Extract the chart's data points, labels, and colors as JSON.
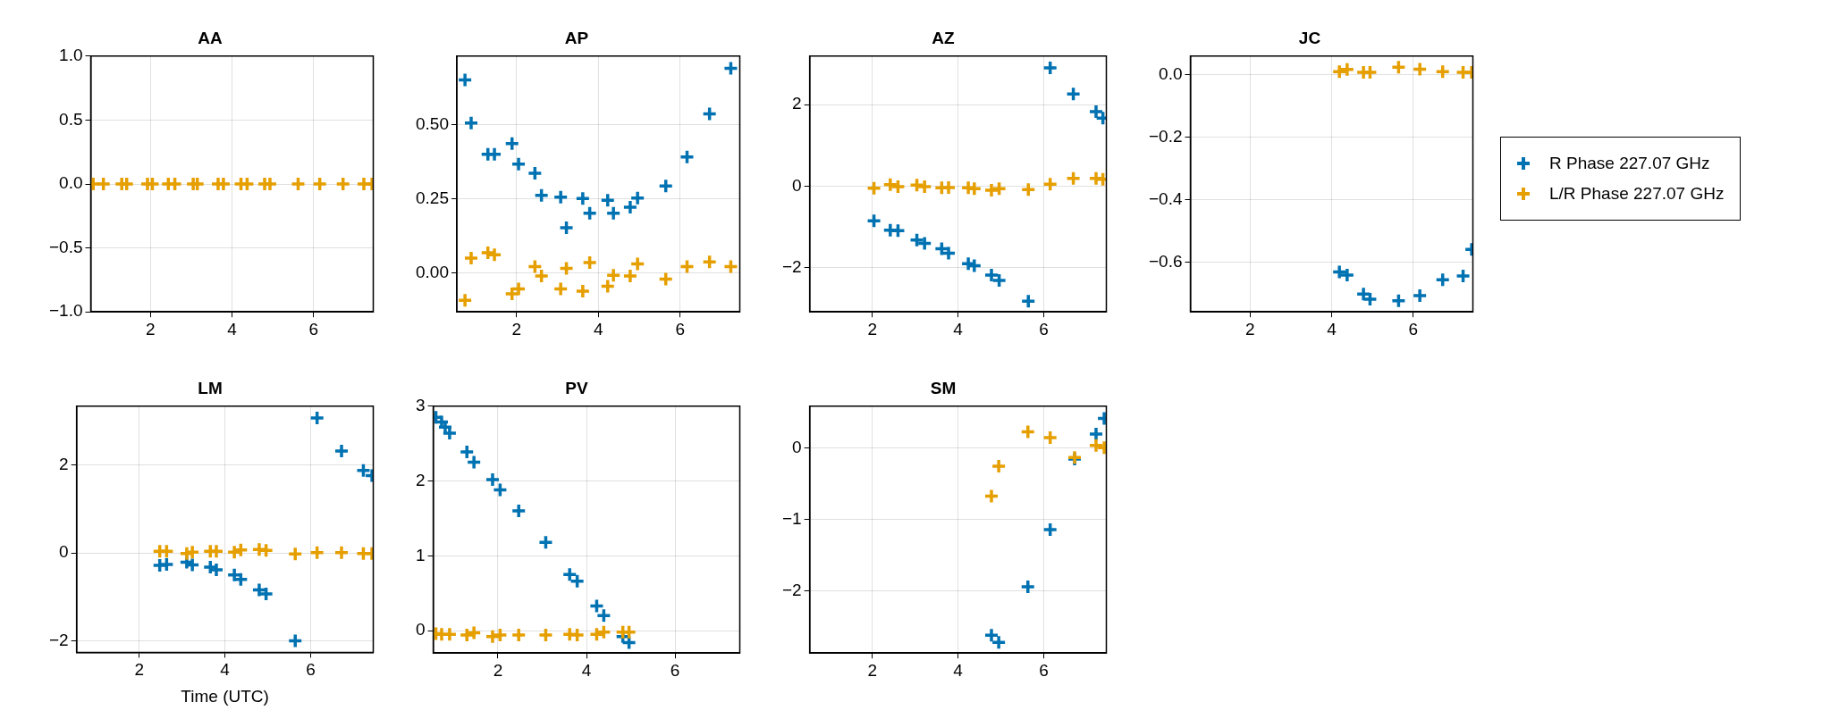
{
  "chart_data": [
    {
      "type": "scatter",
      "title": "AA",
      "xlim": [
        0.54,
        7.46
      ],
      "xticks": [
        2,
        4,
        6
      ],
      "ylim": [
        -1,
        1
      ],
      "yticks": [
        {
          "value": -1,
          "label": "−1.0"
        },
        {
          "value": -0.5,
          "label": "−0.5"
        },
        {
          "value": 0,
          "label": "0.0"
        },
        {
          "value": 0.5,
          "label": "0.5"
        },
        {
          "value": 1,
          "label": "1.0"
        }
      ],
      "grid": true,
      "marker": "cross",
      "series": [
        {
          "color": "#e69f00",
          "x": [
            0.6,
            0.85,
            1.3,
            1.42,
            1.93,
            2.05,
            2.44,
            2.6,
            3.05,
            3.15,
            3.66,
            3.79,
            4.22,
            4.37,
            4.8,
            4.93,
            5.62,
            6.15,
            6.72,
            7.23,
            7.43
          ],
          "values": [
            0,
            0,
            0,
            0,
            0,
            0,
            0,
            0,
            0,
            0,
            0,
            0,
            0,
            0,
            0,
            0,
            0,
            0,
            0,
            0,
            0
          ]
        }
      ]
    },
    {
      "type": "scatter",
      "title": "AP",
      "xlim": [
        0.54,
        7.46
      ],
      "xticks": [
        2,
        4,
        6
      ],
      "ylim": [
        -0.13,
        0.73
      ],
      "yticks": [
        {
          "value": 0,
          "label": "0.00"
        },
        {
          "value": 0.25,
          "label": "0.25"
        },
        {
          "value": 0.5,
          "label": "0.50"
        }
      ],
      "grid": true,
      "marker": "cross",
      "series": [
        {
          "color": "#0072b2",
          "x": [
            0.74,
            0.89,
            1.3,
            1.46,
            1.89,
            2.05,
            2.45,
            2.61,
            3.08,
            3.22,
            3.62,
            3.79,
            4.23,
            4.37,
            4.78,
            4.96,
            5.65,
            6.17,
            6.72,
            7.24
          ],
          "values": [
            0.65,
            0.505,
            0.4,
            0.4,
            0.436,
            0.367,
            0.336,
            0.262,
            0.256,
            0.153,
            0.251,
            0.202,
            0.245,
            0.202,
            0.222,
            0.253,
            0.293,
            0.391,
            0.536,
            0.689
          ]
        },
        {
          "color": "#e69f00",
          "x": [
            0.74,
            0.89,
            1.3,
            1.46,
            1.89,
            2.05,
            2.45,
            2.61,
            3.08,
            3.22,
            3.62,
            3.79,
            4.23,
            4.37,
            4.78,
            4.96,
            5.65,
            6.17,
            6.72,
            7.24
          ],
          "values": [
            -0.091,
            0.051,
            0.069,
            0.062,
            -0.069,
            -0.053,
            0.022,
            -0.009,
            -0.053,
            0.016,
            -0.06,
            0.036,
            -0.044,
            -0.007,
            -0.009,
            0.031,
            -0.02,
            0.022,
            0.038,
            0.022
          ]
        }
      ]
    },
    {
      "type": "scatter",
      "title": "AZ",
      "xlim": [
        0.54,
        7.46
      ],
      "xticks": [
        2,
        4,
        6
      ],
      "ylim": [
        -3.08,
        3.19
      ],
      "yticks": [
        {
          "value": -2,
          "label": "−2"
        },
        0,
        2
      ],
      "grid": true,
      "marker": "cross",
      "series": [
        {
          "color": "#0072b2",
          "x": [
            2.04,
            2.42,
            2.6,
            3.04,
            3.22,
            3.62,
            3.78,
            4.24,
            4.38,
            4.78,
            4.96,
            5.64,
            6.15,
            6.69,
            7.22,
            7.38
          ],
          "values": [
            -0.85,
            -1.08,
            -1.09,
            -1.32,
            -1.4,
            -1.53,
            -1.64,
            -1.9,
            -1.95,
            -2.18,
            -2.31,
            -2.82,
            2.9,
            2.26,
            1.83,
            1.67
          ]
        },
        {
          "color": "#e69f00",
          "x": [
            2.04,
            2.42,
            2.6,
            3.04,
            3.22,
            3.62,
            3.78,
            4.24,
            4.38,
            4.78,
            4.96,
            5.64,
            6.15,
            6.69,
            7.22,
            7.38
          ],
          "values": [
            -0.05,
            0.04,
            -0.01,
            0.03,
            -0.01,
            -0.04,
            -0.03,
            -0.04,
            -0.06,
            -0.1,
            -0.06,
            -0.08,
            0.05,
            0.19,
            0.19,
            0.17
          ]
        }
      ]
    },
    {
      "type": "scatter",
      "title": "JC",
      "xlim": [
        0.54,
        7.46
      ],
      "xticks": [
        2,
        4,
        6
      ],
      "ylim": [
        -0.76,
        0.06
      ],
      "yticks": [
        {
          "value": -0.6,
          "label": "−0.6"
        },
        {
          "value": -0.4,
          "label": "−0.4"
        },
        {
          "value": -0.2,
          "label": "−0.2"
        },
        {
          "value": 0,
          "label": "0.0"
        }
      ],
      "grid": true,
      "marker": "cross",
      "legend": "right",
      "series": [
        {
          "name": "R Phase 227.07 GHz",
          "color": "#0072b2",
          "x": [
            4.19,
            4.38,
            4.78,
            4.94,
            5.64,
            6.16,
            6.72,
            7.22,
            7.43
          ],
          "values": [
            -0.632,
            -0.642,
            -0.703,
            -0.719,
            -0.724,
            -0.708,
            -0.657,
            -0.645,
            -0.56
          ]
        },
        {
          "name": "L/R Phase 227.07 GHz",
          "color": "#e69f00",
          "x": [
            4.19,
            4.38,
            4.78,
            4.94,
            5.64,
            6.16,
            6.72,
            7.22,
            7.43
          ],
          "values": [
            0.01,
            0.017,
            0.008,
            0.008,
            0.024,
            0.018,
            0.01,
            0.008,
            0.008
          ]
        }
      ]
    },
    {
      "type": "scatter",
      "title": "LM",
      "xlabel": "Time (UTC)",
      "xlim": [
        0.54,
        7.46
      ],
      "xticks": [
        2,
        4,
        6
      ],
      "ylim": [
        -2.26,
        3.34
      ],
      "yticks": [
        {
          "value": -2,
          "label": "−2"
        },
        0,
        2
      ],
      "grid": true,
      "marker": "cross",
      "series": [
        {
          "color": "#0072b2",
          "x": [
            2.48,
            2.64,
            3.11,
            3.24,
            3.66,
            3.8,
            4.22,
            4.37,
            4.8,
            4.96,
            5.64,
            6.15,
            6.72,
            7.23,
            7.43
          ],
          "values": [
            -0.28,
            -0.26,
            -0.21,
            -0.27,
            -0.32,
            -0.38,
            -0.5,
            -0.6,
            -0.84,
            -0.93,
            -2,
            3.07,
            2.32,
            1.88,
            1.76
          ]
        },
        {
          "color": "#e69f00",
          "x": [
            2.48,
            2.64,
            3.11,
            3.24,
            3.66,
            3.8,
            4.22,
            4.37,
            4.8,
            4.96,
            5.64,
            6.15,
            6.72,
            7.23,
            7.43
          ],
          "values": [
            0.04,
            0.04,
            -0.01,
            0.02,
            0.04,
            0.04,
            0.02,
            0.07,
            0.08,
            0.06,
            -0.02,
            0.01,
            0.01,
            -0.01,
            -0.01
          ]
        }
      ]
    },
    {
      "type": "scatter",
      "title": "PV",
      "xlim": [
        0.54,
        7.46
      ],
      "xticks": [
        2,
        4,
        6
      ],
      "ylim": [
        -0.3,
        3
      ],
      "yticks": [
        0,
        1,
        2,
        3
      ],
      "grid": true,
      "marker": "cross",
      "series": [
        {
          "color": "#0072b2",
          "x": [
            0.6,
            0.73,
            0.81,
            0.91,
            1.3,
            1.46,
            1.88,
            2.05,
            2.47,
            3.08,
            3.62,
            3.79,
            4.23,
            4.39,
            4.82,
            4.96
          ],
          "values": [
            2.85,
            2.79,
            2.72,
            2.64,
            2.39,
            2.25,
            2.02,
            1.88,
            1.6,
            1.18,
            0.75,
            0.66,
            0.33,
            0.2,
            -0.08,
            -0.16
          ]
        },
        {
          "color": "#e69f00",
          "x": [
            0.6,
            0.73,
            0.91,
            1.3,
            1.46,
            1.88,
            2.05,
            2.47,
            3.08,
            3.62,
            3.79,
            4.23,
            4.39,
            4.82,
            4.96
          ],
          "values": [
            -0.04,
            -0.05,
            -0.05,
            -0.06,
            -0.03,
            -0.08,
            -0.06,
            -0.06,
            -0.06,
            -0.05,
            -0.06,
            -0.05,
            -0.02,
            -0.02,
            -0.02
          ]
        }
      ]
    },
    {
      "type": "scatter",
      "title": "SM",
      "xlim": [
        0.54,
        7.46
      ],
      "xticks": [
        2,
        4,
        6
      ],
      "ylim": [
        -2.87,
        0.59
      ],
      "yticks": [
        {
          "value": -2,
          "label": "−2"
        },
        {
          "value": -1,
          "label": "−1"
        },
        0
      ],
      "grid": true,
      "marker": "cross",
      "series": [
        {
          "color": "#0072b2",
          "x": [
            4.78,
            4.95,
            5.63,
            6.15,
            6.72,
            7.22,
            7.41
          ],
          "values": [
            -2.62,
            -2.72,
            -1.94,
            -1.14,
            -0.15,
            0.2,
            0.42
          ]
        },
        {
          "color": "#e69f00",
          "x": [
            4.78,
            4.95,
            5.63,
            6.15,
            6.72,
            7.22,
            7.41
          ],
          "values": [
            -0.67,
            -0.25,
            0.23,
            0.15,
            -0.13,
            0.04,
            0.01
          ]
        }
      ]
    }
  ]
}
